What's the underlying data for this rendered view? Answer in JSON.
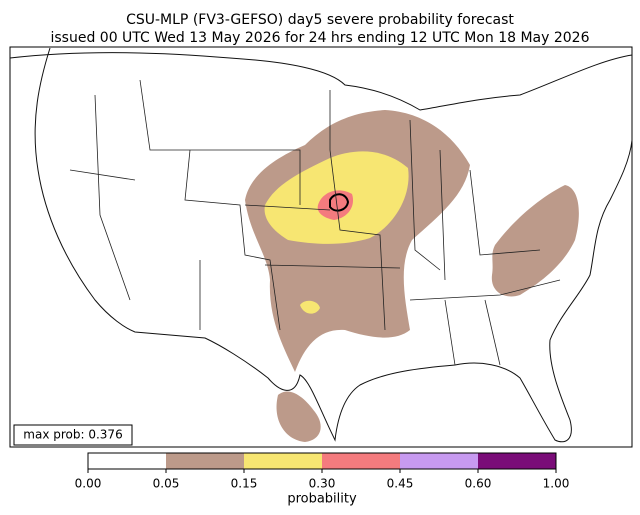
{
  "header": {
    "line1": "CSU-MLP (FV3-GEFSO) day5 severe probability forecast",
    "line2": "issued 00 UTC Wed 13 May 2026 for 24 hrs ending 12 UTC Mon 18 May 2026"
  },
  "annotation": {
    "text": "max prob: 0.376"
  },
  "colorbar": {
    "ticks": [
      {
        "value": 0,
        "label": "0.00"
      },
      {
        "value": 0.05,
        "label": "0.05"
      },
      {
        "value": 0.15,
        "label": "0.15"
      },
      {
        "value": 0.3,
        "label": "0.30"
      },
      {
        "value": 0.45,
        "label": "0.45"
      },
      {
        "value": 0.6,
        "label": "0.60"
      },
      {
        "value": 1,
        "label": "1.00"
      }
    ],
    "colors": [
      "#ffffff",
      "#bc9a8a",
      "#f7e672",
      "#f47b7e",
      "#c79af0",
      "#7a0c78"
    ],
    "label": "probability"
  }
}
